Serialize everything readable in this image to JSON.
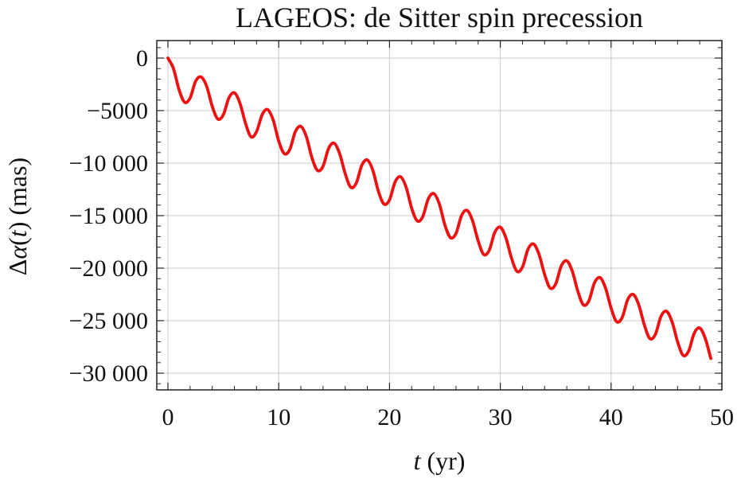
{
  "chart_data": {
    "type": "line",
    "title": "LAGEOS: de Sitter spin precession",
    "xlabel_var": "t",
    "xlabel_unit": " (yr)",
    "ylabel_delta": "Δ",
    "ylabel_var": "α",
    "ylabel_open": "(",
    "ylabel_arg": "t",
    "ylabel_close": ")",
    "ylabel_unit": "  (mas)",
    "xlim": [
      0,
      50
    ],
    "ylim": [
      -31500,
      1700
    ],
    "grid": true,
    "x_ticks": [
      0,
      10,
      20,
      30,
      40,
      50
    ],
    "x_tick_labels": [
      "0",
      "10",
      "20",
      "30",
      "40",
      "50"
    ],
    "y_ticks": [
      0,
      -5000,
      -10000,
      -15000,
      -20000,
      -25000,
      -30000
    ],
    "y_tick_labels": [
      "0",
      "−5000",
      "−10 000",
      "−15 000",
      "−20 000",
      "−25 000",
      "−30 000"
    ],
    "series": [
      {
        "color": "#ee1111",
        "x": [
          0,
          0.5,
          1.0,
          1.5,
          2.0,
          2.5,
          3.0,
          3.5,
          4.0,
          4.5,
          5.0,
          5.5,
          6.0,
          6.5,
          7.0,
          7.5,
          8.0,
          8.5,
          9.0,
          9.5,
          10.0,
          10.5,
          11.0,
          11.5,
          12.0,
          12.5,
          13.0,
          13.5,
          14.0,
          14.5,
          15.0,
          15.5,
          16.0,
          16.5,
          17.0,
          17.5,
          18.0,
          18.5,
          19.0,
          19.5,
          20.0,
          20.5,
          21.0,
          21.5,
          22.0,
          22.5,
          23.0,
          23.5,
          24.0,
          24.5,
          25.0,
          25.5,
          26.0,
          26.5,
          27.0,
          27.5,
          28.0,
          28.5,
          29.0,
          29.5,
          30.0,
          30.5,
          31.0,
          31.5,
          32.0,
          32.5,
          33.0,
          33.5,
          34.0,
          34.5,
          35.0,
          35.5,
          36.0,
          36.5,
          37.0,
          37.5,
          38.0,
          38.5,
          39.0,
          39.5,
          40.0,
          40.5,
          41.0,
          41.5,
          42.0,
          42.5,
          43.0,
          43.5,
          44.0,
          44.5,
          45.0,
          45.5,
          46.0,
          46.5,
          47.0,
          47.5,
          48.0,
          48.5,
          49.0
        ],
        "y": [
          0,
          -1000,
          -3000,
          -4200,
          -3800,
          -2200,
          -1800,
          -2700,
          -4600,
          -5800,
          -5400,
          -3800,
          -3300,
          -4300,
          -6200,
          -7500,
          -7000,
          -5400,
          -4900,
          -5900,
          -7900,
          -9100,
          -8700,
          -7000,
          -6500,
          -7500,
          -9500,
          -10700,
          -10300,
          -8600,
          -8100,
          -9100,
          -11000,
          -12300,
          -11900,
          -10200,
          -9700,
          -10700,
          -12700,
          -13900,
          -13500,
          -11800,
          -11300,
          -12300,
          -14300,
          -15500,
          -15100,
          -13400,
          -12900,
          -13900,
          -15900,
          -17100,
          -16700,
          -15000,
          -14500,
          -15500,
          -17400,
          -18700,
          -18300,
          -16600,
          -16100,
          -17100,
          -19000,
          -20300,
          -19900,
          -18200,
          -17700,
          -18700,
          -20600,
          -21900,
          -21500,
          -19800,
          -19300,
          -20300,
          -22200,
          -23500,
          -23100,
          -21400,
          -20900,
          -21900,
          -23800,
          -25100,
          -24700,
          -23000,
          -22500,
          -23500,
          -25400,
          -26700,
          -26300,
          -24600,
          -24100,
          -25100,
          -27000,
          -28300,
          -27900,
          -26200,
          -25700,
          -26700,
          -28600
        ]
      }
    ]
  }
}
